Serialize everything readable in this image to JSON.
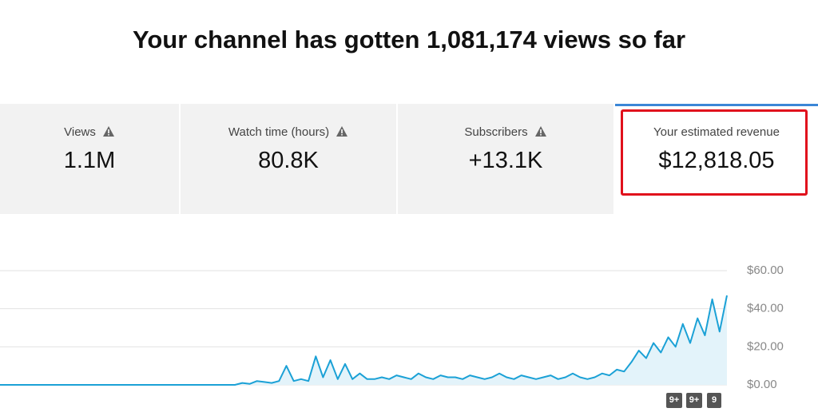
{
  "header": {
    "title": "Your channel has gotten 1,081,174 views so far"
  },
  "metrics": [
    {
      "label": "Views",
      "value": "1.1M"
    },
    {
      "label": "Watch time (hours)",
      "value": "80.8K"
    },
    {
      "label": "Subscribers",
      "value": "+13.1K"
    },
    {
      "label": "Your estimated revenue",
      "value": "$12,818.05"
    }
  ],
  "badges": [
    "9+",
    "9+",
    "9"
  ],
  "chart_data": {
    "type": "line",
    "color": "#1ba1d6",
    "area_color": "#e3f3fa",
    "grid": true,
    "ylim": [
      0,
      60
    ],
    "yticks": [
      {
        "value": 0,
        "label": "$0.00"
      },
      {
        "value": 20,
        "label": "$20.00"
      },
      {
        "value": 40,
        "label": "$40.00"
      },
      {
        "value": 60,
        "label": "$60.00"
      }
    ],
    "values": [
      0,
      0,
      0,
      0,
      0,
      0,
      0,
      0,
      0,
      0,
      0,
      0,
      0,
      0,
      0,
      0,
      0,
      0,
      0,
      0,
      0,
      0,
      0,
      0,
      0,
      0,
      0,
      0,
      0,
      0,
      0,
      0,
      0,
      1,
      0.5,
      2,
      1.5,
      1,
      2,
      10,
      2,
      3,
      2,
      15,
      4,
      13,
      3,
      11,
      3,
      6,
      3,
      3,
      4,
      3,
      5,
      4,
      3,
      6,
      4,
      3,
      5,
      4,
      4,
      3,
      5,
      4,
      3,
      4,
      6,
      4,
      3,
      5,
      4,
      3,
      4,
      5,
      3,
      4,
      6,
      4,
      3,
      4,
      6,
      5,
      8,
      7,
      12,
      18,
      14,
      22,
      17,
      25,
      20,
      32,
      22,
      35,
      26,
      45,
      28,
      47
    ]
  }
}
